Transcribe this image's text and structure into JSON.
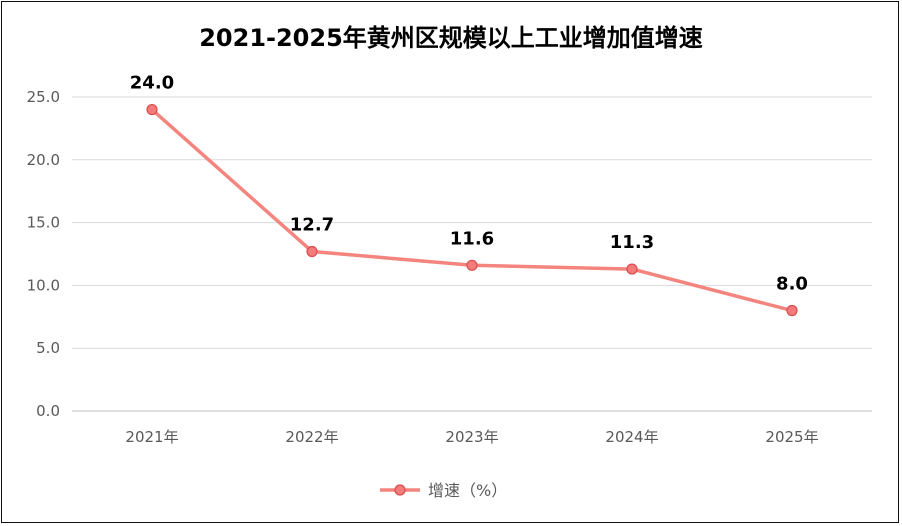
{
  "chart_data": {
    "type": "line",
    "title": "2021-2025年黄州区规模以上工业增加值增速",
    "categories": [
      "2021年",
      "2022年",
      "2023年",
      "2024年",
      "2025年"
    ],
    "series": [
      {
        "name": "增速（%）",
        "values": [
          24.0,
          12.7,
          11.6,
          11.3,
          8.0
        ],
        "labels": [
          "24.0",
          "12.7",
          "11.6",
          "11.3",
          "8.0"
        ]
      }
    ],
    "ylim": [
      0,
      25
    ],
    "yticks": [
      "0.0",
      "5.0",
      "10.0",
      "15.0",
      "20.0",
      "25.0"
    ],
    "grid": true,
    "legend": "bottom",
    "colors": {
      "line": "#f4847e",
      "marker_fill": "#f47b7b",
      "marker_stroke": "#d94c4c",
      "grid": "#d9d9d9"
    }
  }
}
